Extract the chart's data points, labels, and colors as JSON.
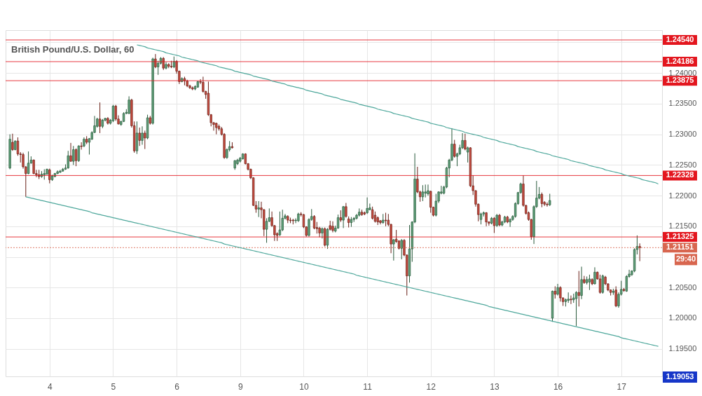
{
  "chart_data": {
    "type": "candlestick",
    "title": "British Pound/U.S. Dollar, 60",
    "categories": [
      null,
      null,
      null,
      null,
      null,
      null,
      null,
      null,
      null,
      null,
      null,
      null,
      null,
      null,
      null,
      "4",
      null,
      null,
      null,
      null,
      null,
      null,
      null,
      null,
      null,
      null,
      null,
      null,
      null,
      null,
      null,
      null,
      null,
      null,
      null,
      null,
      null,
      null,
      null,
      "5",
      null,
      null,
      null,
      null,
      null,
      null,
      null,
      null,
      null,
      null,
      null,
      null,
      null,
      null,
      null,
      null,
      null,
      null,
      null,
      null,
      null,
      null,
      null,
      "6",
      null,
      null,
      null,
      null,
      null,
      null,
      null,
      null,
      null,
      null,
      null,
      null,
      null,
      null,
      null,
      null,
      null,
      null,
      null,
      null,
      null,
      null,
      null,
      "9",
      null,
      null,
      null,
      null,
      null,
      null,
      null,
      null,
      null,
      null,
      null,
      null,
      null,
      null,
      null,
      null,
      null,
      null,
      null,
      null,
      null,
      null,
      null,
      "10",
      null,
      null,
      null,
      null,
      null,
      null,
      null,
      null,
      null,
      null,
      null,
      null,
      null,
      null,
      null,
      null,
      null,
      null,
      null,
      null,
      null,
      null,
      null,
      "11",
      null,
      null,
      null,
      null,
      null,
      null,
      null,
      null,
      null,
      null,
      null,
      null,
      null,
      null,
      null,
      null,
      null,
      null,
      null,
      null,
      null,
      null,
      null,
      "12",
      null,
      null,
      null,
      null,
      null,
      null,
      null,
      null,
      null,
      null,
      null,
      null,
      null,
      null,
      null,
      null,
      null,
      null,
      null,
      null,
      null,
      null,
      null,
      "13",
      null,
      null,
      null,
      null,
      null,
      null,
      null,
      null,
      null,
      null,
      null,
      null,
      null,
      null,
      null,
      null,
      null,
      null,
      null,
      null,
      null,
      null,
      null,
      "16",
      null,
      null,
      null,
      null,
      null,
      null,
      null,
      null,
      null,
      null,
      null,
      null,
      null,
      null,
      null,
      null,
      null,
      null,
      null,
      null,
      null,
      null,
      null,
      "17",
      null,
      null,
      null,
      null,
      null,
      null,
      null,
      null,
      null,
      null,
      null,
      null,
      null,
      null
    ],
    "ohlc": [
      [
        1.2245,
        1.23,
        1.2243,
        1.2292
      ],
      [
        1.2287,
        1.2301,
        1.2273,
        1.2275
      ],
      [
        1.2275,
        1.229,
        1.2274,
        1.2289
      ],
      [
        1.2289,
        1.2295,
        1.2265,
        1.2268
      ],
      [
        1.2268,
        1.2271,
        1.2254,
        1.2267
      ],
      [
        1.2267,
        1.227,
        1.2244,
        1.2247
      ],
      [
        1.2247,
        1.2248,
        1.2198,
        1.2236
      ],
      [
        1.2236,
        1.2272,
        1.2235,
        1.2253
      ],
      [
        1.2253,
        1.2264,
        1.2252,
        1.2258
      ],
      [
        1.2258,
        1.2259,
        1.2235,
        1.2236
      ],
      [
        1.2236,
        1.2242,
        1.223,
        1.2234
      ],
      [
        1.2234,
        1.2242,
        1.2227,
        1.2231
      ],
      [
        1.2231,
        1.224,
        1.2229,
        1.2235
      ],
      [
        1.2234,
        1.2243,
        1.2226,
        1.2236
      ],
      [
        1.2235,
        1.2244,
        1.2234,
        1.2243
      ],
      [
        1.2242,
        1.2244,
        1.222,
        1.2226
      ],
      [
        1.2226,
        1.2234,
        1.2224,
        1.2232
      ],
      [
        1.2231,
        1.2237,
        1.223,
        1.2236
      ],
      [
        1.2236,
        1.2241,
        1.2235,
        1.2239
      ],
      [
        1.2238,
        1.2242,
        1.2237,
        1.224
      ],
      [
        1.224,
        1.2245,
        1.2239,
        1.2243
      ],
      [
        1.2243,
        1.2251,
        1.2242,
        1.2245
      ],
      [
        1.2245,
        1.2273,
        1.2244,
        1.2265
      ],
      [
        1.2265,
        1.2286,
        1.2255,
        1.2256
      ],
      [
        1.2256,
        1.2281,
        1.225,
        1.2275
      ],
      [
        1.2275,
        1.2277,
        1.2248,
        1.2257
      ],
      [
        1.2257,
        1.2282,
        1.2255,
        1.2281
      ],
      [
        1.2281,
        1.2287,
        1.2275,
        1.228
      ],
      [
        1.2281,
        1.2295,
        1.2279,
        1.2292
      ],
      [
        1.2292,
        1.2297,
        1.2284,
        1.2287
      ],
      [
        1.2287,
        1.2294,
        1.2267,
        1.2293
      ],
      [
        1.2292,
        1.2305,
        1.2291,
        1.2303
      ],
      [
        1.2303,
        1.233,
        1.2302,
        1.2314
      ],
      [
        1.2313,
        1.2327,
        1.2311,
        1.2325
      ],
      [
        1.2325,
        1.2352,
        1.2302,
        1.2313
      ],
      [
        1.2313,
        1.2325,
        1.231,
        1.2323
      ],
      [
        1.2323,
        1.2327,
        1.2321,
        1.2326
      ],
      [
        1.2326,
        1.2328,
        1.2316,
        1.2318
      ],
      [
        1.2318,
        1.2325,
        1.2316,
        1.2323
      ],
      [
        1.2322,
        1.2348,
        1.232,
        1.2346
      ],
      [
        1.2346,
        1.2348,
        1.2322,
        1.2325
      ],
      [
        1.2325,
        1.2331,
        1.2316,
        1.2317
      ],
      [
        1.2316,
        1.2322,
        1.2314,
        1.2321
      ],
      [
        1.2321,
        1.2336,
        1.232,
        1.2334
      ],
      [
        1.2334,
        1.2341,
        1.2333,
        1.2336
      ],
      [
        1.2334,
        1.2362,
        1.2333,
        1.2356
      ],
      [
        1.2356,
        1.2358,
        1.2311,
        1.2314
      ],
      [
        1.2314,
        1.2321,
        1.227,
        1.2273
      ],
      [
        1.2273,
        1.2321,
        1.2268,
        1.2302
      ],
      [
        1.2302,
        1.2311,
        1.2281,
        1.229
      ],
      [
        1.229,
        1.2313,
        1.2283,
        1.2302
      ],
      [
        1.2302,
        1.2306,
        1.2276,
        1.2294
      ],
      [
        1.2294,
        1.2332,
        1.2292,
        1.2327
      ],
      [
        1.2327,
        1.233,
        1.2316,
        1.2318
      ],
      [
        1.2318,
        1.2425,
        1.2316,
        1.2423
      ],
      [
        1.2423,
        1.2431,
        1.2408,
        1.241
      ],
      [
        1.241,
        1.242,
        1.2397,
        1.2416
      ],
      [
        1.2416,
        1.2426,
        1.2414,
        1.2424
      ],
      [
        1.2424,
        1.2426,
        1.2405,
        1.2408
      ],
      [
        1.2408,
        1.2418,
        1.2406,
        1.2414
      ],
      [
        1.2414,
        1.2416,
        1.2408,
        1.2411
      ],
      [
        1.2411,
        1.242,
        1.2408,
        1.241
      ],
      [
        1.241,
        1.2427,
        1.2408,
        1.2419
      ],
      [
        1.2419,
        1.2421,
        1.2399,
        1.2403
      ],
      [
        1.2403,
        1.2404,
        1.2382,
        1.2386
      ],
      [
        1.2386,
        1.2393,
        1.2385,
        1.2391
      ],
      [
        1.2391,
        1.2394,
        1.238,
        1.2387
      ],
      [
        1.2387,
        1.2389,
        1.2377,
        1.2379
      ],
      [
        1.2379,
        1.2381,
        1.2374,
        1.2376
      ],
      [
        1.2376,
        1.2378,
        1.2372,
        1.2374
      ],
      [
        1.2374,
        1.238,
        1.2372,
        1.2378
      ],
      [
        1.2377,
        1.2387,
        1.2376,
        1.2386
      ],
      [
        1.2386,
        1.239,
        1.2382,
        1.2385
      ],
      [
        1.2385,
        1.2394,
        1.2368,
        1.237
      ],
      [
        1.237,
        1.2371,
        1.2358,
        1.2365
      ],
      [
        1.2367,
        1.2386,
        1.233,
        1.2332
      ],
      [
        1.2332,
        1.2333,
        1.2313,
        1.2319
      ],
      [
        1.2319,
        1.232,
        1.2306,
        1.2316
      ],
      [
        1.2318,
        1.2319,
        1.23,
        1.2311
      ],
      [
        1.2313,
        1.2316,
        1.2306,
        1.2309
      ],
      [
        1.2309,
        1.2312,
        1.2298,
        1.23
      ],
      [
        1.23,
        1.2302,
        1.226,
        1.2262
      ],
      [
        1.2262,
        1.2277,
        1.226,
        1.2275
      ],
      [
        1.2275,
        1.2289,
        1.2272,
        1.228
      ],
      [
        1.228,
        1.2287,
        1.2277,
        1.2278
      ],
      [
        1.2245,
        1.2258,
        1.2242,
        1.2257
      ],
      [
        1.2252,
        1.226,
        1.225,
        1.2258
      ],
      [
        1.2256,
        1.2263,
        1.2254,
        1.2261
      ],
      [
        1.226,
        1.2269,
        1.2259,
        1.2268
      ],
      [
        1.2268,
        1.2269,
        1.2251,
        1.2252
      ],
      [
        1.2252,
        1.2253,
        1.2241,
        1.2243
      ],
      [
        1.2243,
        1.2244,
        1.2227,
        1.2229
      ],
      [
        1.2229,
        1.223,
        1.2183,
        1.2184
      ],
      [
        1.2184,
        1.2191,
        1.2172,
        1.2178
      ],
      [
        1.2178,
        1.2191,
        1.2165,
        1.218
      ],
      [
        1.218,
        1.219,
        1.2163,
        1.2177
      ],
      [
        1.2177,
        1.2178,
        1.2134,
        1.2145
      ],
      [
        1.2145,
        1.2163,
        1.2123,
        1.2158
      ],
      [
        1.2158,
        1.2179,
        1.2157,
        1.2164
      ],
      [
        1.2164,
        1.2174,
        1.2149,
        1.2151
      ],
      [
        1.2151,
        1.2152,
        1.2126,
        1.2136
      ],
      [
        1.2138,
        1.214,
        1.2126,
        1.2135
      ],
      [
        1.2136,
        1.2174,
        1.2134,
        1.2144
      ],
      [
        1.2144,
        1.2177,
        1.2142,
        1.2163
      ],
      [
        1.2163,
        1.217,
        1.2161,
        1.2167
      ],
      [
        1.2166,
        1.2168,
        1.2155,
        1.216
      ],
      [
        1.216,
        1.2164,
        1.2155,
        1.2159
      ],
      [
        1.216,
        1.2162,
        1.2153,
        1.2159
      ],
      [
        1.2159,
        1.2163,
        1.2155,
        1.216
      ],
      [
        1.2159,
        1.2172,
        1.2157,
        1.217
      ],
      [
        1.217,
        1.2173,
        1.2166,
        1.2169
      ],
      [
        1.2169,
        1.217,
        1.2147,
        1.2149
      ],
      [
        1.2149,
        1.215,
        1.2133,
        1.2135
      ],
      [
        1.2135,
        1.2163,
        1.2133,
        1.2161
      ],
      [
        1.2161,
        1.2178,
        1.2159,
        1.2166
      ],
      [
        1.2166,
        1.2168,
        1.2145,
        1.2147
      ],
      [
        1.2148,
        1.2157,
        1.2138,
        1.2146
      ],
      [
        1.2147,
        1.2149,
        1.2132,
        1.2139
      ],
      [
        1.2139,
        1.2148,
        1.213,
        1.2146
      ],
      [
        1.2146,
        1.2148,
        1.2117,
        1.2119
      ],
      [
        1.2119,
        1.2147,
        1.2113,
        1.2145
      ],
      [
        1.2151,
        1.2159,
        1.2143,
        1.2145
      ],
      [
        1.215,
        1.2158,
        1.214,
        1.2143
      ],
      [
        1.2142,
        1.2151,
        1.214,
        1.2147
      ],
      [
        1.2147,
        1.2169,
        1.2146,
        1.2164
      ],
      [
        1.2164,
        1.2176,
        1.2157,
        1.216
      ],
      [
        1.216,
        1.2183,
        1.2147,
        1.2182
      ],
      [
        1.2182,
        1.2188,
        1.2164,
        1.2166
      ],
      [
        1.2162,
        1.2166,
        1.2148,
        1.2156
      ],
      [
        1.2156,
        1.2165,
        1.2149,
        1.2161
      ],
      [
        1.2161,
        1.2165,
        1.2157,
        1.2163
      ],
      [
        1.2163,
        1.217,
        1.2161,
        1.2168
      ],
      [
        1.2168,
        1.2179,
        1.2166,
        1.2173
      ],
      [
        1.2173,
        1.2177,
        1.2167,
        1.2169
      ],
      [
        1.2172,
        1.2174,
        1.2168,
        1.217
      ],
      [
        1.2172,
        1.2197,
        1.217,
        1.2179
      ],
      [
        1.2177,
        1.2187,
        1.2176,
        1.218
      ],
      [
        1.2177,
        1.2182,
        1.2161,
        1.2163
      ],
      [
        1.2168,
        1.2174,
        1.2156,
        1.2158
      ],
      [
        1.2164,
        1.2166,
        1.2152,
        1.2157
      ],
      [
        1.2159,
        1.216,
        1.2153,
        1.2156
      ],
      [
        1.2156,
        1.217,
        1.2154,
        1.216
      ],
      [
        1.216,
        1.2172,
        1.215,
        1.2159
      ],
      [
        1.216,
        1.217,
        1.215,
        1.2153
      ],
      [
        1.2153,
        1.2154,
        1.2106,
        1.2121
      ],
      [
        1.2121,
        1.2129,
        1.2094,
        1.2128
      ],
      [
        1.2129,
        1.2144,
        1.2123,
        1.2125
      ],
      [
        1.2126,
        1.2127,
        1.2112,
        1.2114
      ],
      [
        1.2114,
        1.2129,
        1.2096,
        1.2127
      ],
      [
        1.2127,
        1.2129,
        1.2101,
        1.2103
      ],
      [
        1.2103,
        1.2104,
        1.2037,
        1.2069
      ],
      [
        1.2069,
        1.2152,
        1.2058,
        1.2113
      ],
      [
        1.2113,
        1.2158,
        1.2092,
        1.2157
      ],
      [
        1.2157,
        1.2269,
        1.2155,
        1.2227
      ],
      [
        1.2227,
        1.2247,
        1.2204,
        1.2206
      ],
      [
        1.2206,
        1.2208,
        1.219,
        1.2198
      ],
      [
        1.2198,
        1.2217,
        1.2191,
        1.2206
      ],
      [
        1.2204,
        1.2218,
        1.2197,
        1.2206
      ],
      [
        1.2203,
        1.2218,
        1.22,
        1.2208
      ],
      [
        1.2207,
        1.2208,
        1.2172,
        1.2181
      ],
      [
        1.2181,
        1.2182,
        1.2166,
        1.2168
      ],
      [
        1.2168,
        1.2203,
        1.2166,
        1.2191
      ],
      [
        1.2191,
        1.2207,
        1.2188,
        1.2206
      ],
      [
        1.2204,
        1.2216,
        1.2202,
        1.2206
      ],
      [
        1.2204,
        1.2216,
        1.2202,
        1.2214
      ],
      [
        1.2214,
        1.2247,
        1.2212,
        1.2245
      ],
      [
        1.2245,
        1.226,
        1.223,
        1.2258
      ],
      [
        1.2258,
        1.231,
        1.2256,
        1.2284
      ],
      [
        1.2284,
        1.2291,
        1.2262,
        1.2264
      ],
      [
        1.2264,
        1.227,
        1.2248,
        1.2268
      ],
      [
        1.2268,
        1.2283,
        1.2266,
        1.2278
      ],
      [
        1.2278,
        1.2302,
        1.2276,
        1.229
      ],
      [
        1.229,
        1.2301,
        1.2274,
        1.2276
      ],
      [
        1.2271,
        1.228,
        1.2254,
        1.2278
      ],
      [
        1.2278,
        1.2279,
        1.2214,
        1.2216
      ],
      [
        1.2216,
        1.2233,
        1.2201,
        1.2208
      ],
      [
        1.2208,
        1.2209,
        1.2182,
        1.2186
      ],
      [
        1.2186,
        1.2187,
        1.2158,
        1.2169
      ],
      [
        1.2161,
        1.2172,
        1.2153,
        1.217
      ],
      [
        1.217,
        1.2174,
        1.2166,
        1.2172
      ],
      [
        1.2172,
        1.2173,
        1.215,
        1.2157
      ],
      [
        1.2157,
        1.2158,
        1.2151,
        1.2155
      ],
      [
        1.2155,
        1.2165,
        1.2153,
        1.2163
      ],
      [
        1.2163,
        1.2165,
        1.2139,
        1.2151
      ],
      [
        1.2151,
        1.217,
        1.2149,
        1.2168
      ],
      [
        1.2168,
        1.217,
        1.215,
        1.2152
      ],
      [
        1.2152,
        1.2159,
        1.215,
        1.2157
      ],
      [
        1.2157,
        1.2167,
        1.2155,
        1.2165
      ],
      [
        1.2165,
        1.2167,
        1.2155,
        1.2157
      ],
      [
        1.2157,
        1.2163,
        1.2149,
        1.2161
      ],
      [
        1.2161,
        1.2168,
        1.2159,
        1.2166
      ],
      [
        1.2166,
        1.2189,
        1.2164,
        1.2187
      ],
      [
        1.2187,
        1.2206,
        1.2185,
        1.2205
      ],
      [
        1.2205,
        1.2221,
        1.2203,
        1.2219
      ],
      [
        1.2219,
        1.2233,
        1.2182,
        1.2184
      ],
      [
        1.2184,
        1.2185,
        1.2169,
        1.2171
      ],
      [
        1.2172,
        1.2174,
        1.2159,
        1.2161
      ],
      [
        1.2161,
        1.2162,
        1.2128,
        1.2133
      ],
      [
        1.2133,
        1.2184,
        1.2121,
        1.2182
      ],
      [
        1.2182,
        1.2224,
        1.218,
        1.2196
      ],
      [
        1.2196,
        1.2214,
        1.2194,
        1.2202
      ],
      [
        1.2202,
        1.2205,
        1.2181,
        1.2187
      ],
      [
        1.2189,
        1.2191,
        1.2183,
        1.2186
      ],
      [
        1.2186,
        1.2189,
        1.2182,
        1.2185
      ],
      [
        1.2185,
        1.2203,
        1.2183,
        1.2192
      ],
      [
        1.2,
        1.2045,
        1.1994,
        1.2044
      ],
      [
        1.2044,
        1.2052,
        1.2032,
        1.2039
      ],
      [
        1.2039,
        1.2056,
        1.2037,
        1.205
      ],
      [
        1.205,
        1.2052,
        1.2027,
        1.2033
      ],
      [
        1.2033,
        1.2034,
        1.202,
        1.2027
      ],
      [
        1.2027,
        1.2032,
        1.2019,
        1.203
      ],
      [
        1.2029,
        1.2042,
        1.2025,
        1.2031
      ],
      [
        1.2031,
        1.2037,
        1.2023,
        1.203
      ],
      [
        1.203,
        1.204,
        1.2025,
        1.2033
      ],
      [
        1.2032,
        1.2044,
        1.1987,
        1.2042
      ],
      [
        1.2042,
        1.2077,
        1.2019,
        1.2037
      ],
      [
        1.2037,
        1.2084,
        1.2031,
        1.2063
      ],
      [
        1.2063,
        1.2069,
        1.2056,
        1.2058
      ],
      [
        1.2058,
        1.2068,
        1.2055,
        1.2063
      ],
      [
        1.2059,
        1.2071,
        1.2046,
        1.2064
      ],
      [
        1.2063,
        1.2065,
        1.2054,
        1.2056
      ],
      [
        1.2056,
        1.2083,
        1.2055,
        1.2075
      ],
      [
        1.2075,
        1.2076,
        1.2063,
        1.2064
      ],
      [
        1.2064,
        1.2071,
        1.204,
        1.2042
      ],
      [
        1.2042,
        1.2071,
        1.204,
        1.2069
      ],
      [
        1.2067,
        1.2069,
        1.2054,
        1.2056
      ],
      [
        1.2056,
        1.2057,
        1.2044,
        1.2046
      ],
      [
        1.2046,
        1.2047,
        1.2037,
        1.2042
      ],
      [
        1.2042,
        1.2048,
        1.2038,
        1.2044
      ],
      [
        1.2046,
        1.2052,
        1.2018,
        1.202
      ],
      [
        1.202,
        1.2042,
        1.2017,
        1.2039
      ],
      [
        1.2039,
        1.2061,
        1.2037,
        1.2047
      ],
      [
        1.2047,
        1.2049,
        1.2043,
        1.2045
      ],
      [
        1.2044,
        1.207,
        1.2043,
        1.2068
      ],
      [
        1.2068,
        1.2079,
        1.2066,
        1.2072
      ],
      [
        1.2071,
        1.2078,
        1.2069,
        1.2077
      ],
      [
        1.2077,
        1.2114,
        1.2075,
        1.2112
      ],
      [
        1.2112,
        1.2135,
        1.2104,
        1.2117
      ],
      [
        1.2117,
        1.2122,
        1.2093,
        1.21151
      ],
      null,
      null,
      null,
      null,
      null,
      null,
      null
    ],
    "series": [
      {
        "type": "line",
        "color": "#4fa89c",
        "values": [
          null,
          null,
          null,
          null,
          null,
          null,
          null,
          null,
          null,
          null,
          null,
          null,
          null,
          null,
          null,
          null,
          null,
          null,
          null,
          null,
          null,
          null,
          null,
          null,
          null,
          null,
          null,
          null,
          null,
          null,
          null,
          null,
          null,
          null,
          null,
          null,
          null,
          null,
          null,
          null,
          null,
          null,
          null,
          null,
          null,
          null,
          null,
          null,
          1.2446,
          1.2445,
          1.2444,
          1.2443,
          1.2441,
          1.244,
          1.2439,
          1.2438,
          1.2437,
          1.2436,
          1.2435,
          1.2433,
          1.2432,
          1.2431,
          1.243,
          1.2429,
          1.2428,
          1.2426,
          1.2425,
          1.2424,
          1.2423,
          1.2422,
          1.2421,
          1.242,
          1.2418,
          1.2417,
          1.2416,
          1.2415,
          1.2414,
          1.2413,
          1.2412,
          1.241,
          1.2409,
          1.2408,
          1.2407,
          1.2406,
          1.2405,
          1.2403,
          1.2402,
          1.2401,
          1.24,
          1.2399,
          1.2398,
          1.2397,
          1.2395,
          1.2394,
          1.2393,
          1.2392,
          1.2391,
          1.239,
          1.2389,
          1.2387,
          1.2386,
          1.2385,
          1.2384,
          1.2383,
          1.2382,
          1.238,
          1.2379,
          1.2378,
          1.2377,
          1.2376,
          1.2375,
          1.2374,
          1.2372,
          1.2371,
          1.237,
          1.2369,
          1.2368,
          1.2367,
          1.2366,
          1.2364,
          1.2363,
          1.2362,
          1.2361,
          1.236,
          1.2359,
          1.2357,
          1.2356,
          1.2355,
          1.2354,
          1.2353,
          1.2352,
          1.2351,
          1.2349,
          1.2348,
          1.2347,
          1.2346,
          1.2345,
          1.2344,
          1.2343,
          1.2341,
          1.234,
          1.2339,
          1.2338,
          1.2337,
          1.2336,
          1.2334,
          1.2333,
          1.2332,
          1.2331,
          1.233,
          1.2329,
          1.2328,
          1.2326,
          1.2325,
          1.2324,
          1.2323,
          1.2322,
          1.2321,
          1.232,
          1.2318,
          1.2317,
          1.2316,
          1.2315,
          1.2314,
          1.2313,
          1.2311,
          1.231,
          1.2309,
          1.2308,
          1.2307,
          1.2306,
          1.2305,
          1.2303,
          1.2302,
          1.2301,
          1.23,
          1.2299,
          1.2298,
          1.2297,
          1.2295,
          1.2294,
          1.2293,
          1.2292,
          1.2291,
          1.229,
          1.2288,
          1.2287,
          1.2286,
          1.2285,
          1.2284,
          1.2283,
          1.2282,
          1.228,
          1.2279,
          1.2278,
          1.2277,
          1.2276,
          1.2275,
          1.2274,
          1.2272,
          1.2271,
          1.227,
          1.2269,
          1.2268,
          1.2267,
          1.2265,
          1.2264,
          1.2263,
          1.2262,
          1.2261,
          1.226,
          1.2259,
          1.2257,
          1.2256,
          1.2255,
          1.2254,
          1.2253,
          1.2252,
          1.2251,
          1.2249,
          1.2248,
          1.2247,
          1.2246,
          1.2245,
          1.2244,
          1.2242,
          1.2241,
          1.224,
          1.2239,
          1.2238,
          1.2237,
          1.2236,
          1.2234,
          1.2233,
          1.2232,
          1.2231,
          1.223,
          1.2229,
          1.2228,
          1.2226,
          1.2225,
          1.2224,
          1.2223,
          1.2222,
          1.2221,
          1.2219
        ]
      },
      {
        "type": "line",
        "color": "#4fa89c",
        "values": [
          null,
          null,
          null,
          null,
          null,
          null,
          1.2198,
          1.2197,
          1.2196,
          1.2195,
          1.2194,
          1.2193,
          1.2192,
          1.2191,
          1.219,
          1.2189,
          1.2188,
          1.2187,
          1.2186,
          1.2185,
          1.2184,
          1.2183,
          1.2182,
          1.2181,
          1.218,
          1.2179,
          1.2178,
          1.2177,
          1.2176,
          1.2175,
          1.2174,
          1.2172,
          1.2171,
          1.217,
          1.2169,
          1.2168,
          1.2167,
          1.2166,
          1.2165,
          1.2164,
          1.2163,
          1.2162,
          1.2161,
          1.216,
          1.2159,
          1.2158,
          1.2157,
          1.2156,
          1.2155,
          1.2154,
          1.2153,
          1.2152,
          1.2151,
          1.215,
          1.2149,
          1.2148,
          1.2147,
          1.2146,
          1.2145,
          1.2144,
          1.2143,
          1.2142,
          1.2141,
          1.214,
          1.2139,
          1.2138,
          1.2137,
          1.2136,
          1.2135,
          1.2134,
          1.2133,
          1.2132,
          1.2131,
          1.213,
          1.2129,
          1.2128,
          1.2127,
          1.2126,
          1.2125,
          1.2124,
          1.2123,
          1.2121,
          1.212,
          1.2119,
          1.2118,
          1.2117,
          1.2116,
          1.2115,
          1.2114,
          1.2113,
          1.2112,
          1.2111,
          1.211,
          1.2109,
          1.2108,
          1.2107,
          1.2106,
          1.2105,
          1.2104,
          1.2103,
          1.2102,
          1.2101,
          1.21,
          1.2099,
          1.2098,
          1.2097,
          1.2096,
          1.2095,
          1.2094,
          1.2093,
          1.2092,
          1.2091,
          1.209,
          1.2089,
          1.2088,
          1.2087,
          1.2086,
          1.2085,
          1.2084,
          1.2083,
          1.2082,
          1.2081,
          1.208,
          1.2079,
          1.2078,
          1.2077,
          1.2076,
          1.2075,
          1.2074,
          1.2073,
          1.2072,
          1.207,
          1.2069,
          1.2068,
          1.2067,
          1.2066,
          1.2065,
          1.2064,
          1.2063,
          1.2062,
          1.2061,
          1.206,
          1.2059,
          1.2058,
          1.2057,
          1.2056,
          1.2055,
          1.2054,
          1.2053,
          1.2052,
          1.2051,
          1.205,
          1.2049,
          1.2048,
          1.2047,
          1.2046,
          1.2045,
          1.2044,
          1.2043,
          1.2042,
          1.2041,
          1.204,
          1.2039,
          1.2038,
          1.2037,
          1.2036,
          1.2035,
          1.2034,
          1.2033,
          1.2032,
          1.2031,
          1.203,
          1.2029,
          1.2028,
          1.2027,
          1.2026,
          1.2025,
          1.2024,
          1.2023,
          1.2022,
          1.2021,
          1.2019,
          1.2018,
          1.2017,
          1.2016,
          1.2015,
          1.2014,
          1.2013,
          1.2012,
          1.2011,
          1.201,
          1.2009,
          1.2008,
          1.2007,
          1.2006,
          1.2005,
          1.2004,
          1.2003,
          1.2002,
          1.2001,
          1.2,
          1.1999,
          1.1998,
          1.1997,
          1.1996,
          1.1995,
          1.1994,
          1.1993,
          1.1992,
          1.1991,
          1.199,
          1.1989,
          1.1988,
          1.1987,
          1.1986,
          1.1985,
          1.1984,
          1.1983,
          1.1982,
          1.1981,
          1.198,
          1.1979,
          1.1978,
          1.1977,
          1.1976,
          1.1975,
          1.1974,
          1.1973,
          1.1972,
          1.1971,
          1.197,
          1.1968,
          1.1967,
          1.1966,
          1.1965,
          1.1964,
          1.1963,
          1.1962,
          1.1961,
          1.196,
          1.1959,
          1.1958,
          1.1957,
          1.1956,
          1.1955,
          1.1954
        ]
      }
    ],
    "ylim": [
      1.1905,
      1.247
    ],
    "yticks": [
      {
        "value": 1.245,
        "label": null
      },
      {
        "value": 1.24,
        "label": "1.24000"
      },
      {
        "value": 1.235,
        "label": "1.23500"
      },
      {
        "value": 1.23,
        "label": "1.23000"
      },
      {
        "value": 1.225,
        "label": "1.22500"
      },
      {
        "value": 1.22,
        "label": "1.22000"
      },
      {
        "value": 1.215,
        "label": "1.21500"
      },
      {
        "value": 1.21,
        "label": null
      },
      {
        "value": 1.205,
        "label": "1.20500"
      },
      {
        "value": 1.2,
        "label": "1.20000"
      },
      {
        "value": 1.195,
        "label": "1.19500"
      }
    ],
    "ref_lines": [
      {
        "axis": "y",
        "value": 1.2454,
        "label": "1.24540",
        "color": "#e3161e"
      },
      {
        "axis": "y",
        "value": 1.24186,
        "label": "1.24186",
        "color": "#e3161e"
      },
      {
        "axis": "y",
        "value": 1.23875,
        "label": "1.23875",
        "color": "#e3161e"
      },
      {
        "axis": "y",
        "value": 1.22328,
        "label": "1.22328",
        "color": "#e3161e"
      },
      {
        "axis": "y",
        "value": 1.21325,
        "label": "1.21325",
        "color": "#e3161e"
      },
      {
        "axis": "y",
        "value": 1.21151,
        "label": "1.21151",
        "color": "#d8664f",
        "line_style": "dotted"
      }
    ],
    "annotations": [
      "29:40",
      "1.19053"
    ],
    "grid": true
  }
}
